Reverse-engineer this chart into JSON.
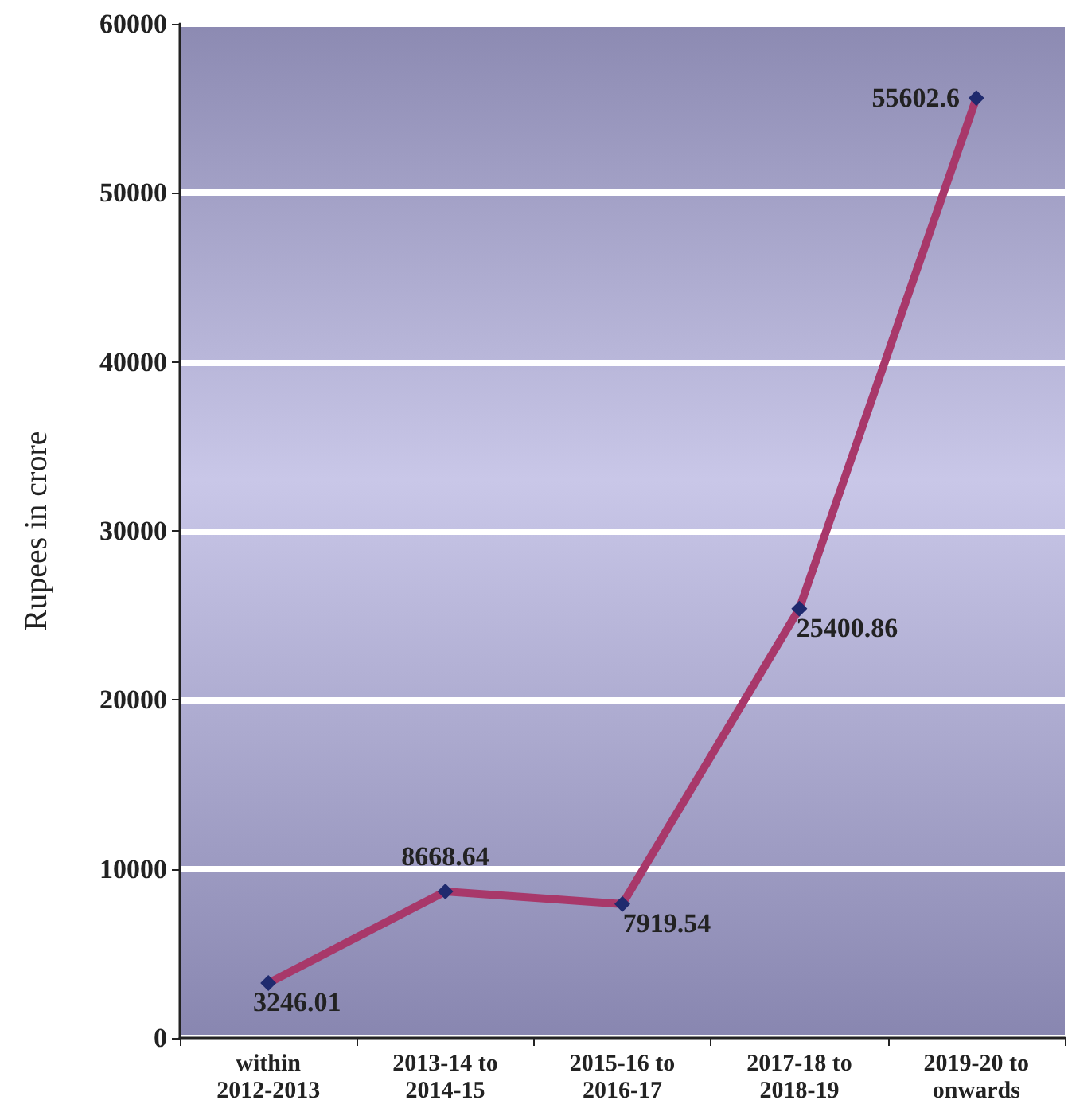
{
  "chart_data": {
    "type": "line",
    "ylabel": "Rupees in crore",
    "categories": [
      "within\n2012-2013",
      "2013-14 to\n2014-15",
      "2015-16 to\n2016-17",
      "2017-18 to\n2018-19",
      "2019-20 to\nonwards"
    ],
    "series": [
      {
        "color": "#a8386a",
        "values": [
          3246.01,
          8668.64,
          7919.54,
          25400.86,
          55602.6
        ]
      }
    ],
    "ylim": [
      0,
      60000
    ],
    "yticks": [
      0,
      10000,
      20000,
      30000,
      40000,
      50000,
      60000
    ],
    "grid": "y",
    "marker": "diamond",
    "line_style": "solid",
    "data_labels": true
  }
}
